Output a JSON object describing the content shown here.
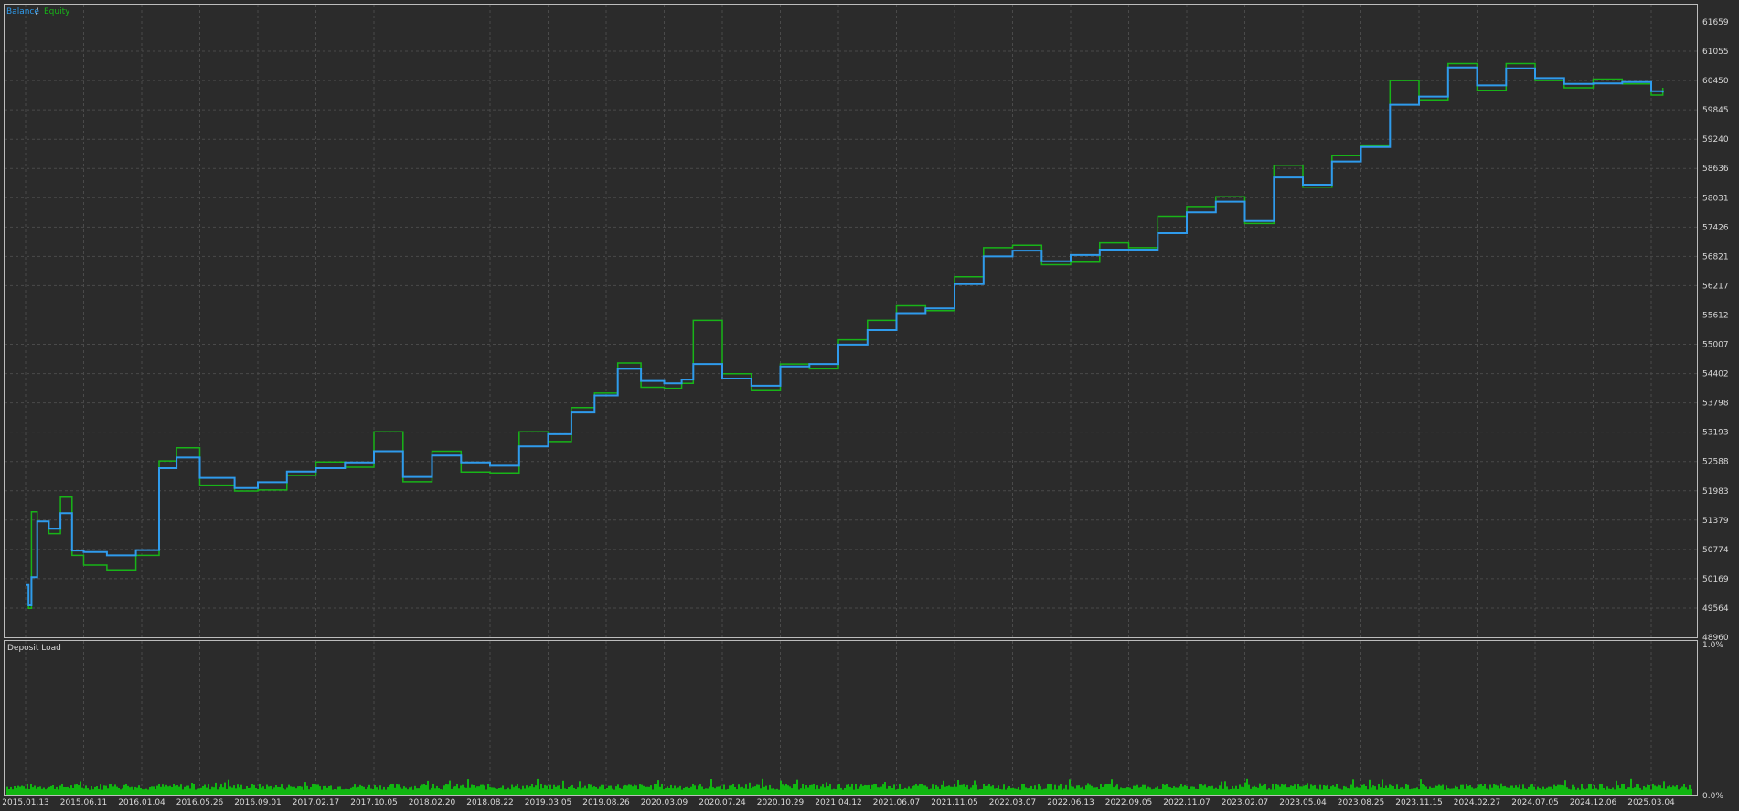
{
  "colors": {
    "background": "#2b2b2b",
    "panel_border": "#bdbdbd",
    "grid": "#4a4a4a",
    "balance": "#2f9bec",
    "equity": "#18b418",
    "deposit": "#11b611",
    "text": "#d8d8d8"
  },
  "chart_data": [
    {
      "type": "line",
      "title": "",
      "legend": {
        "position": "top-left",
        "entries": [
          "Balance",
          "Equity"
        ],
        "separator": " / "
      },
      "grid": true,
      "ylim": [
        48960,
        61659
      ],
      "y_ticks": [
        "61659",
        "61055",
        "60450",
        "59845",
        "59240",
        "58636",
        "58031",
        "57426",
        "56821",
        "56217",
        "55612",
        "55007",
        "54402",
        "53798",
        "53193",
        "52588",
        "51983",
        "51379",
        "50774",
        "50169",
        "49564",
        "48960"
      ],
      "x_ticks": [
        "2015.01.13",
        "2015.06.11",
        "2016.01.04",
        "2016.05.26",
        "2016.09.01",
        "2017.02.17",
        "2017.10.05",
        "2018.02.20",
        "2018.08.22",
        "2019.03.05",
        "2019.08.26",
        "2020.03.09",
        "2020.07.24",
        "2020.10.29",
        "2021.04.12",
        "2021.06.07",
        "2021.11.05",
        "2022.03.07",
        "2022.06.13",
        "2022.09.05",
        "2022.11.07",
        "2023.02.07",
        "2023.05.04",
        "2023.08.25",
        "2023.11.15",
        "2024.02.27",
        "2024.07.05",
        "2024.12.06",
        "2025.03.04"
      ],
      "series": [
        {
          "name": "Balance",
          "x_index": [
            0,
            0.05,
            0.1,
            0.2,
            0.4,
            0.6,
            0.8,
            1.0,
            1.4,
            1.9,
            2.3,
            2.6,
            3.0,
            3.6,
            4.0,
            4.5,
            5.0,
            5.5,
            6.0,
            6.5,
            7.0,
            7.5,
            8.0,
            8.5,
            9.0,
            9.4,
            9.8,
            10.2,
            10.6,
            11.0,
            11.3,
            11.5,
            12.0,
            12.5,
            13.0,
            13.5,
            14.0,
            14.5,
            15.0,
            15.5,
            16.0,
            16.5,
            17.0,
            17.5,
            18.0,
            18.5,
            19.0,
            19.5,
            20.0,
            20.5,
            21.0,
            21.5,
            22.0,
            22.5,
            23.0,
            23.5,
            24.0,
            24.5,
            25.0,
            25.5,
            26.0,
            26.5,
            27.0,
            27.5,
            28.0,
            28.2
          ],
          "values": [
            50040,
            49620,
            50200,
            51350,
            51200,
            51520,
            50750,
            50720,
            50650,
            50760,
            52450,
            52670,
            52250,
            52040,
            52160,
            52380,
            52450,
            52570,
            52800,
            52270,
            52710,
            52570,
            52500,
            52900,
            53150,
            53600,
            53950,
            54500,
            54250,
            54200,
            54280,
            54600,
            54300,
            54150,
            54550,
            54600,
            55000,
            55300,
            55650,
            55750,
            56250,
            56820,
            56940,
            56720,
            56850,
            56960,
            56960,
            57300,
            57730,
            57950,
            57550,
            58450,
            58300,
            58780,
            59080,
            59950,
            60120,
            60720,
            60350,
            60700,
            60500,
            60380,
            60390,
            60420,
            60230,
            60200
          ]
        },
        {
          "name": "Equity",
          "x_index": [
            0,
            0.05,
            0.1,
            0.2,
            0.4,
            0.6,
            0.8,
            1.0,
            1.4,
            1.9,
            2.3,
            2.6,
            3.0,
            3.6,
            4.0,
            4.5,
            5.0,
            5.5,
            6.0,
            6.5,
            7.0,
            7.5,
            8.0,
            8.5,
            9.0,
            9.4,
            9.8,
            10.2,
            10.6,
            11.0,
            11.3,
            11.5,
            12.0,
            12.5,
            13.0,
            13.5,
            14.0,
            14.5,
            15.0,
            15.5,
            16.0,
            16.5,
            17.0,
            17.5,
            18.0,
            18.5,
            19.0,
            19.5,
            20.0,
            20.5,
            21.0,
            21.5,
            22.0,
            22.5,
            23.0,
            23.5,
            24.0,
            24.5,
            25.0,
            25.5,
            26.0,
            26.5,
            27.0,
            27.5,
            28.0,
            28.2
          ],
          "values": [
            50040,
            49560,
            51550,
            51350,
            51100,
            51850,
            50650,
            50450,
            50350,
            50650,
            52600,
            52870,
            52100,
            51980,
            52000,
            52300,
            52580,
            52470,
            53200,
            52170,
            52800,
            52370,
            52350,
            53200,
            53000,
            53700,
            54000,
            54620,
            54120,
            54100,
            54200,
            55500,
            54400,
            54050,
            54600,
            54500,
            55100,
            55500,
            55800,
            55700,
            56400,
            57000,
            57050,
            56650,
            56700,
            57100,
            57000,
            57650,
            57850,
            58050,
            57500,
            58700,
            58250,
            58900,
            59100,
            60450,
            60050,
            60800,
            60250,
            60800,
            60450,
            60300,
            60480,
            60380,
            60150,
            60300
          ]
        }
      ]
    },
    {
      "type": "bar",
      "title": "Deposit Load",
      "ylim": [
        0,
        1.0
      ],
      "y_ticks": [
        "1.0%",
        "0.0%"
      ],
      "typical_value": 0.07,
      "color": "#11b611"
    }
  ]
}
